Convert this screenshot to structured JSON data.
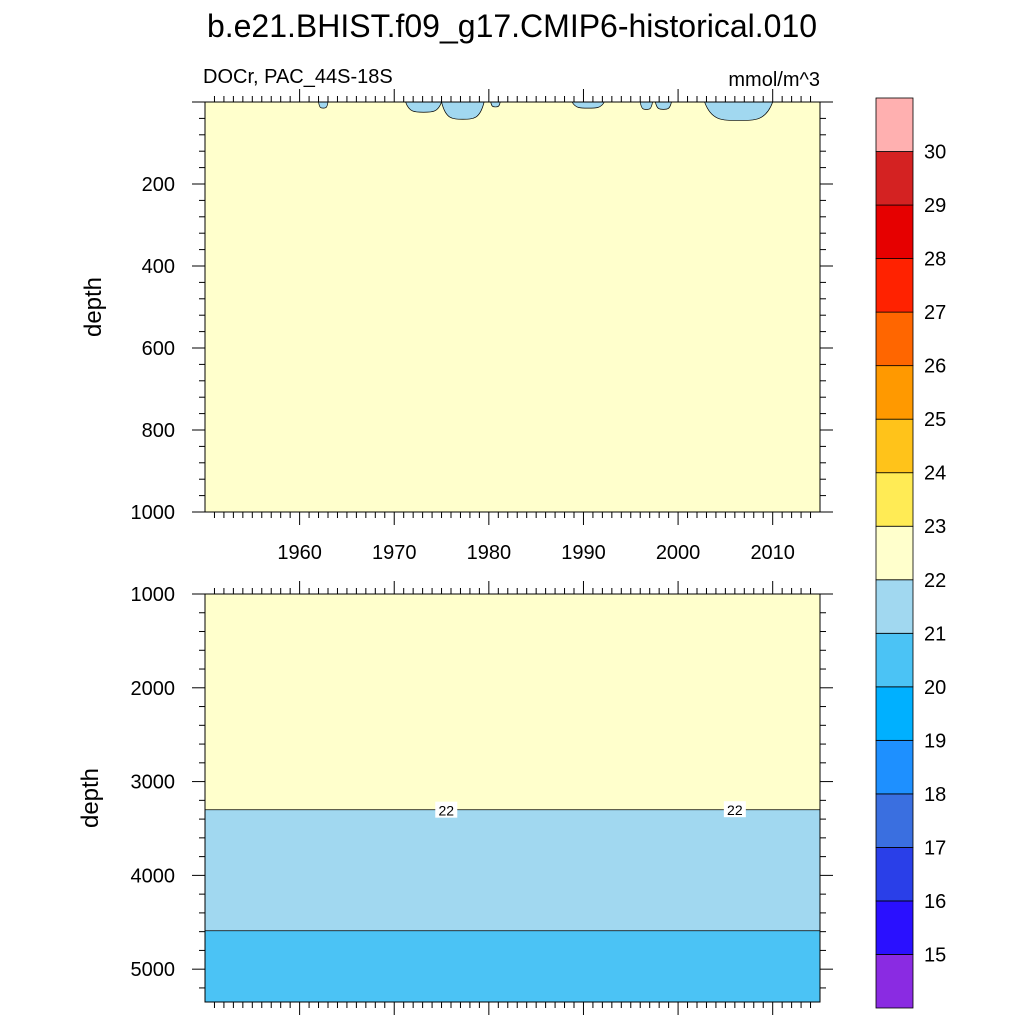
{
  "chart_data": {
    "type": "heatmap",
    "title": "b.e21.BHIST.f09_g17.CMIP6-historical.010",
    "subtitle_left": "DOCr, PAC_44S-18S",
    "subtitle_right": "mmol/m^3",
    "colorbar": {
      "colors": [
        "#8a2be2",
        "#2a10ff",
        "#2a3fe8",
        "#3a6fe0",
        "#1e90ff",
        "#00b0ff",
        "#4bc3f5",
        "#a1d8f0",
        "#ffffcc",
        "#ffeb55",
        "#ffc31a",
        "#ff9900",
        "#ff6600",
        "#ff2200",
        "#e60000",
        "#d42222",
        "#ffb0b0"
      ],
      "labels": [
        "15",
        "16",
        "17",
        "18",
        "19",
        "20",
        "21",
        "22",
        "23",
        "24",
        "25",
        "26",
        "27",
        "28",
        "29",
        "30"
      ]
    },
    "panels": [
      {
        "name": "upper",
        "ylabel": "depth",
        "ylim": [
          0,
          1000
        ],
        "yticks": [
          200,
          400,
          600,
          800,
          1000
        ],
        "ytick_labels": [
          "200",
          "400",
          "600",
          "800",
          "1000"
        ],
        "xlim": [
          1950,
          2015
        ],
        "xticks": [
          1960,
          1970,
          1980,
          1990,
          2000,
          2010
        ],
        "xtick_labels": [
          "1960",
          "1970",
          "1980",
          "1990",
          "2000",
          "2010"
        ],
        "background_value_range": [
          22,
          23
        ],
        "surface_patches": [
          {
            "x0": 1962.0,
            "x1": 1963.0,
            "max_depth": 15,
            "value_range": [
              21,
              22
            ]
          },
          {
            "x0": 1971.2,
            "x1": 1975.0,
            "max_depth": 25,
            "value_range": [
              21,
              22
            ]
          },
          {
            "x0": 1975.0,
            "x1": 1979.5,
            "max_depth": 42,
            "value_range": [
              21,
              22
            ]
          },
          {
            "x0": 1980.2,
            "x1": 1981.2,
            "max_depth": 12,
            "value_range": [
              21,
              22
            ]
          },
          {
            "x0": 1988.8,
            "x1": 1992.2,
            "max_depth": 15,
            "value_range": [
              21,
              22
            ]
          },
          {
            "x0": 1996.0,
            "x1": 1997.3,
            "max_depth": 18,
            "value_range": [
              21,
              22
            ]
          },
          {
            "x0": 1997.6,
            "x1": 1999.3,
            "max_depth": 18,
            "value_range": [
              21,
              22
            ]
          },
          {
            "x0": 2002.8,
            "x1": 2010.0,
            "max_depth": 45,
            "value_range": [
              21,
              22
            ]
          }
        ]
      },
      {
        "name": "lower",
        "ylabel": "depth",
        "ylim": [
          1000,
          5350
        ],
        "yticks": [
          1000,
          2000,
          3000,
          4000,
          5000
        ],
        "ytick_labels": [
          "1000",
          "2000",
          "3000",
          "4000",
          "5000"
        ],
        "xlim": [
          1950,
          2015
        ],
        "layers": [
          {
            "top_depth": 1000,
            "value_range": [
              22,
              23
            ]
          },
          {
            "top_depth": 3300,
            "value_range": [
              21,
              22
            ]
          },
          {
            "top_depth": 4590,
            "value_range": [
              20,
              21
            ]
          }
        ],
        "contour_labels": [
          {
            "text": "22",
            "year": 1975.5,
            "depth": 3310
          },
          {
            "text": "22",
            "year": 2006.0,
            "depth": 3305
          }
        ]
      }
    ]
  }
}
